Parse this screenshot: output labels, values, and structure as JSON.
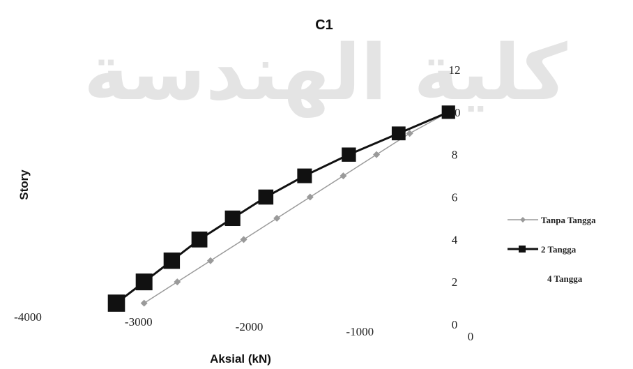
{
  "watermark": {
    "text": "كلية الهندسة",
    "color": "#cfcfcf"
  },
  "chart_data": {
    "type": "line",
    "title": "C1",
    "xlabel": "Aksial (kN)",
    "ylabel": "Story",
    "xlim": [
      -4000,
      0
    ],
    "ylim": [
      0,
      12
    ],
    "x_ticks": [
      "-4000",
      "-3000",
      "-2000",
      "-1000",
      "0"
    ],
    "y_ticks": [
      "0",
      "2",
      "4",
      "6",
      "8",
      "10",
      "12"
    ],
    "legend_position": "right",
    "series": [
      {
        "name": "Tanpa Tangga",
        "marker": "diamond",
        "color": "#9a9a9a",
        "points": [
          {
            "x": -2950,
            "y": 1
          },
          {
            "x": -2650,
            "y": 2
          },
          {
            "x": -2350,
            "y": 3
          },
          {
            "x": -2050,
            "y": 4
          },
          {
            "x": -1750,
            "y": 5
          },
          {
            "x": -1450,
            "y": 6
          },
          {
            "x": -1150,
            "y": 7
          },
          {
            "x": -850,
            "y": 8
          },
          {
            "x": -550,
            "y": 9
          },
          {
            "x": -200,
            "y": 10
          }
        ]
      },
      {
        "name": "2 Tangga",
        "marker": "square",
        "color": "#111111",
        "points": [
          {
            "x": -3200,
            "y": 1
          },
          {
            "x": -2950,
            "y": 2
          },
          {
            "x": -2700,
            "y": 3
          },
          {
            "x": -2450,
            "y": 4
          },
          {
            "x": -2150,
            "y": 5
          },
          {
            "x": -1850,
            "y": 6
          },
          {
            "x": -1500,
            "y": 7
          },
          {
            "x": -1100,
            "y": 8
          },
          {
            "x": -650,
            "y": 9
          },
          {
            "x": -200,
            "y": 10
          }
        ]
      },
      {
        "name": "4 Tangga",
        "marker": "none",
        "color": "#ffffff",
        "points": []
      }
    ]
  }
}
